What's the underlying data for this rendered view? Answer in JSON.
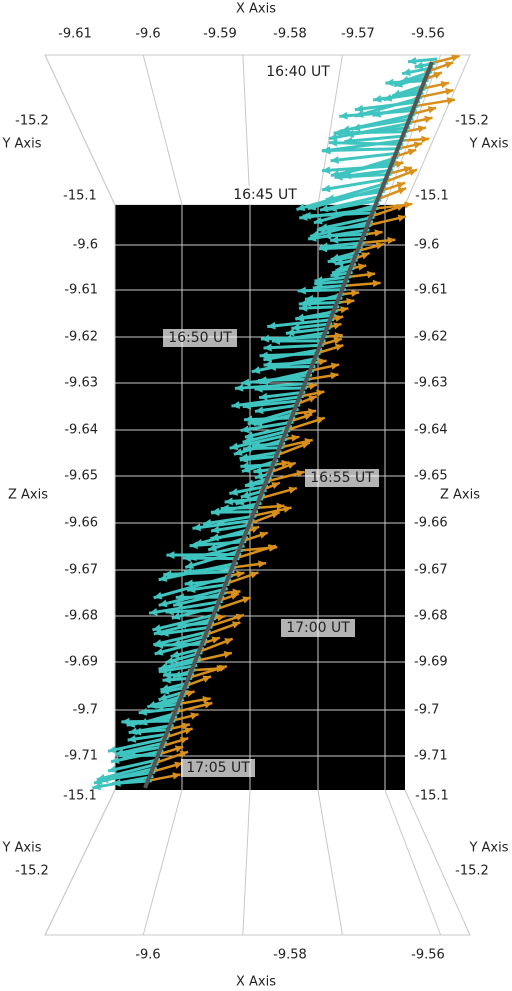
{
  "x_axis": {
    "title_top": "X Axis",
    "ticks_top": [
      "-9.61",
      "-9.6",
      "-9.59",
      "-9.58",
      "-9.57",
      "-9.56"
    ],
    "title_bottom": "X Axis",
    "ticks_bottom": [
      "-9.6",
      "-9.58",
      "-9.56"
    ]
  },
  "y_axis": {
    "title_top_left": "Y Axis",
    "title_top_right": "Y Axis",
    "title_bottom_left": "Y Axis",
    "title_bottom_right": "Y Axis",
    "top_left_ticks": [
      "-15.2",
      "-15.1"
    ],
    "top_right_ticks": [
      "-15.2",
      "-15.1"
    ],
    "bottom_left_ticks": [
      "-15.1",
      "-15.2"
    ],
    "bottom_right_ticks": [
      "-15.1",
      "-15.2"
    ]
  },
  "z_axis": {
    "title_left": "Z Axis",
    "title_right": "Z Axis",
    "ticks": [
      "-9.6",
      "-9.61",
      "-9.62",
      "-9.63",
      "-9.64",
      "-9.65",
      "-9.66",
      "-9.67",
      "-9.68",
      "-9.69",
      "-9.7",
      "-9.71"
    ]
  },
  "time_labels": [
    "16:40 UT",
    "16:45 UT",
    "16:50 UT",
    "16:55 UT",
    "17:00 UT",
    "17:05 UT"
  ]
}
